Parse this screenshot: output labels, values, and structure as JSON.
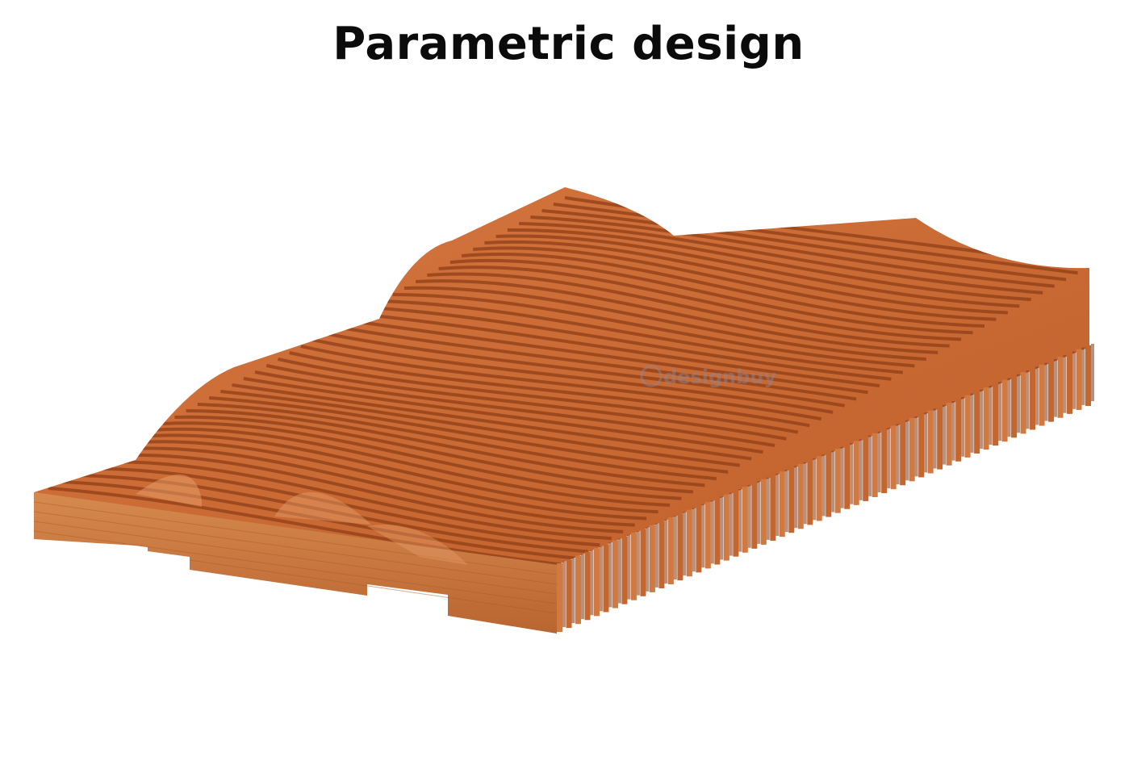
{
  "title": "Parametric design",
  "watermark": {
    "text": "designbuy"
  },
  "colors": {
    "wood_light": "#d9773f",
    "wood_mid": "#c7652e",
    "wood_dark": "#8f3f17",
    "wood_side": "#c8763a",
    "background": "#ffffff"
  }
}
